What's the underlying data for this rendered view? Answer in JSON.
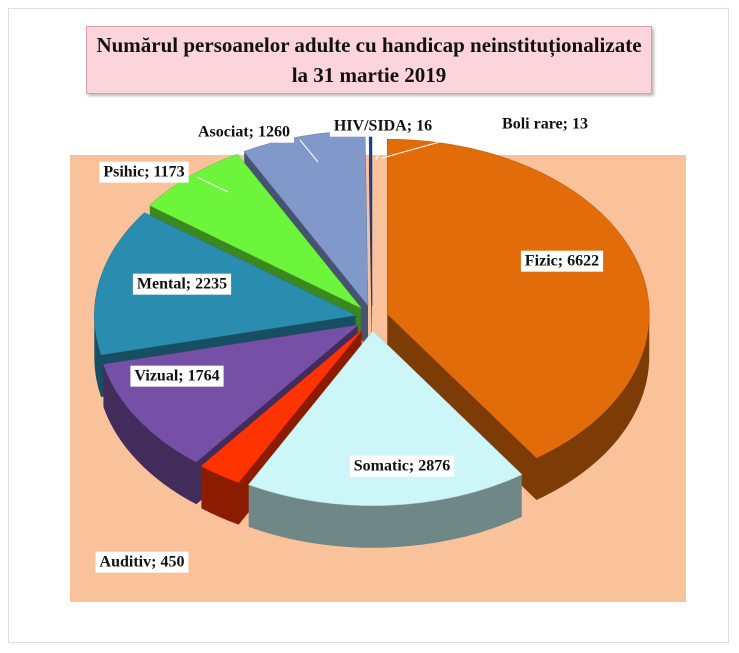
{
  "chart_data": {
    "type": "pie3d",
    "title": "Numărul persoanelor adulte cu handicap neinstituționalizate\nla  31 martie 2019",
    "categories": [
      "Fizic",
      "Somatic",
      "Auditiv",
      "Vizual",
      "Mental",
      "Psihic",
      "Asociat",
      "HIV/SIDA",
      "Boli rare"
    ],
    "values": [
      6622,
      2876,
      450,
      1764,
      2235,
      1173,
      1260,
      16,
      13
    ],
    "value_labels": [
      "Fizic; 6622",
      "Somatic; 2876",
      "Auditiv; 450",
      "Vizual; 1764",
      "Mental; 2235",
      "Psihic; 1173",
      "Asociat; 1260",
      "HIV/SIDA; 16",
      "Boli rare; 13"
    ],
    "colors": [
      "#e36c0a",
      "#ccf6f8",
      "#ff3300",
      "#7650a6",
      "#2a8db0",
      "#6cf53a",
      "#8198cb",
      "#2b4fa0",
      "#1d3c85"
    ]
  }
}
